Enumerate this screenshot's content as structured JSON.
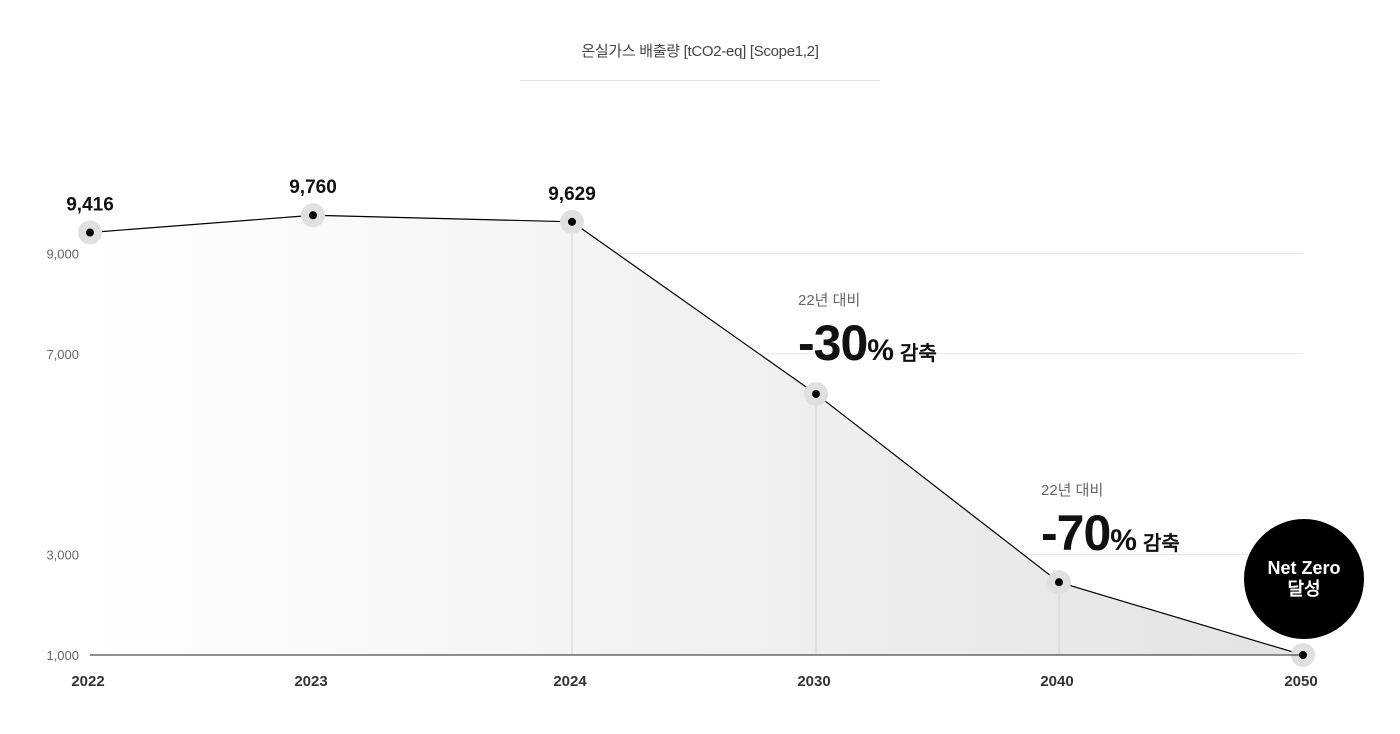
{
  "chart_data": {
    "type": "line",
    "title": "온실가스 배출량 [tCO2-eq] [Scope1,2]",
    "categories": [
      "2022",
      "2023",
      "2024",
      "2030",
      "2040",
      "2050"
    ],
    "values": [
      9416,
      9760,
      9629,
      6200,
      2450,
      1000
    ],
    "value_labels": [
      "9,416",
      "9,760",
      "9,629",
      "",
      "",
      ""
    ],
    "yticks": [
      {
        "value": 1000,
        "label": "1,000"
      },
      {
        "value": 3000,
        "label": "3,000"
      },
      {
        "value": 7000,
        "label": "7,000"
      },
      {
        "value": 9000,
        "label": "9,000"
      }
    ],
    "ylim": [
      1000,
      9760
    ],
    "grid": true,
    "area_fill": true
  },
  "annotations": {
    "target_2030": {
      "caption": "22년 대비",
      "value": "-30",
      "unit": "%",
      "word": "감축"
    },
    "target_2040": {
      "caption": "22년 대비",
      "value": "-70",
      "unit": "%",
      "word": "감축"
    },
    "net_zero": {
      "line1": "Net Zero",
      "line2": "달성"
    }
  },
  "colors": {
    "line": "#000000",
    "marker": "#000000",
    "marker_halo": "#e0e0e0",
    "grid": "#e6e6e6",
    "area_start": "#ffffff",
    "area_end": "#e3e3e3",
    "badge": "#000000"
  }
}
